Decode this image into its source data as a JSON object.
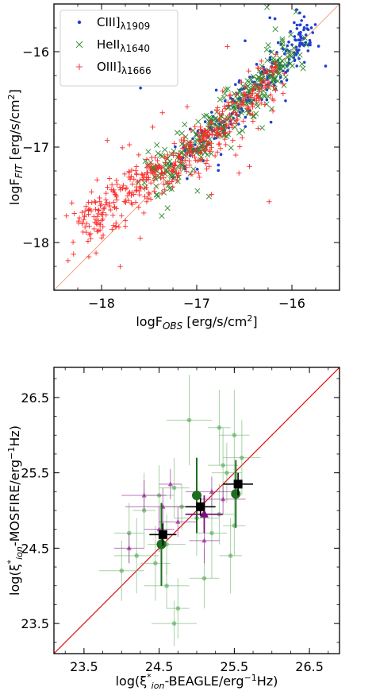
{
  "chart_data": [
    {
      "type": "scatter",
      "title": "",
      "xlabel": {
        "main": "logF",
        "sub": "OBS",
        "units": " [erg/s/cm",
        "sup": "2",
        "close": "]"
      },
      "ylabel": {
        "main": "logF",
        "sub": "FIT",
        "units": " [erg/s/cm",
        "sup": "2",
        "close": "]"
      },
      "xlim": [
        -18.5,
        -15.5
      ],
      "ylim": [
        -18.5,
        -15.5
      ],
      "xticks": [
        -18,
        -17,
        -16
      ],
      "yticks": [
        -18,
        -17,
        -16
      ],
      "xtick_labels": [
        "−18",
        "−17",
        "−16"
      ],
      "ytick_labels": [
        "−18",
        "−17",
        "−16"
      ],
      "grid": false,
      "legend_position": "top-left",
      "reference_line": {
        "from": [
          -18.5,
          -18.5
        ],
        "to": [
          -15.5,
          -15.5
        ],
        "color": "#f4a582"
      },
      "series": [
        {
          "name": "CIII]",
          "sub": "λ1909",
          "marker": "dot",
          "color": "#1f3fd1",
          "center": [
            [
              -17.2,
              -17.2
            ],
            [
              -16.9,
              -16.9
            ],
            [
              -16.6,
              -16.6
            ],
            [
              -16.3,
              -16.3
            ],
            [
              -16.0,
              -16.0
            ],
            [
              -15.8,
              -15.75
            ]
          ],
          "spread": 0.09,
          "count": 260
        },
        {
          "name": "HeII",
          "sub": "λ1640",
          "marker": "x",
          "color": "#2e8b2e",
          "center": [
            [
              -17.5,
              -17.3
            ],
            [
              -17.2,
              -17.15
            ],
            [
              -16.9,
              -16.9
            ],
            [
              -16.6,
              -16.6
            ],
            [
              -16.3,
              -16.3
            ],
            [
              -16.0,
              -16.0
            ]
          ],
          "spread": 0.11,
          "count": 320
        },
        {
          "name": "OIII]",
          "sub": "λ1666",
          "marker": "plus",
          "color": "#ff2a2a",
          "center": [
            [
              -18.2,
              -17.9
            ],
            [
              -17.9,
              -17.6
            ],
            [
              -17.6,
              -17.4
            ],
            [
              -17.3,
              -17.2
            ],
            [
              -17.0,
              -17.0
            ],
            [
              -16.8,
              -16.85
            ],
            [
              -16.5,
              -16.55
            ],
            [
              -16.2,
              -16.25
            ]
          ],
          "spread": 0.12,
          "count": 480
        }
      ]
    },
    {
      "type": "scatter",
      "title": "",
      "xlabel": {
        "pre": "log(ξ",
        "sub": "ion",
        "sup": "*",
        "post": "-BEAGLE/erg",
        "sup2": "−1",
        "close": "Hz)"
      },
      "ylabel": {
        "pre": "log(ξ",
        "sub": "ion",
        "sup": "*",
        "post": "-MOSFIRE/erg",
        "sup2": "−1",
        "close": "Hz)"
      },
      "xlim": [
        23.1,
        26.9
      ],
      "ylim": [
        23.1,
        26.9
      ],
      "xticks": [
        23.5,
        24.5,
        25.5,
        26.5
      ],
      "yticks": [
        23.5,
        24.5,
        25.5,
        26.5
      ],
      "xtick_labels": [
        "23.5",
        "24.5",
        "25.5",
        "26.5"
      ],
      "ytick_labels": [
        "23.5",
        "24.5",
        "25.5",
        "26.5"
      ],
      "grid": false,
      "reference_line": {
        "from": [
          23.1,
          23.1
        ],
        "to": [
          26.9,
          26.9
        ],
        "color": "#e01010"
      },
      "series": [
        {
          "marker": "small-green-circle",
          "color": "#5fae5f",
          "points": [
            {
              "x": 24.9,
              "y": 26.2,
              "xerr": 0.3,
              "yerr": 0.6
            },
            {
              "x": 25.5,
              "y": 26.0,
              "xerr": 0.2,
              "yerr": 0.6
            },
            {
              "x": 25.3,
              "y": 26.1,
              "xerr": 0.15,
              "yerr": 0.5
            },
            {
              "x": 25.6,
              "y": 25.7,
              "xerr": 0.25,
              "yerr": 0.5
            },
            {
              "x": 25.4,
              "y": 25.5,
              "xerr": 0.2,
              "yerr": 0.4
            },
            {
              "x": 24.7,
              "y": 25.3,
              "xerr": 0.2,
              "yerr": 0.4
            },
            {
              "x": 24.3,
              "y": 25.0,
              "xerr": 0.15,
              "yerr": 0.5
            },
            {
              "x": 24.5,
              "y": 25.2,
              "xerr": 0.2,
              "yerr": 0.4
            },
            {
              "x": 24.8,
              "y": 25.05,
              "xerr": 0.25,
              "yerr": 0.3
            },
            {
              "x": 25.0,
              "y": 24.9,
              "xerr": 0.3,
              "yerr": 0.5
            },
            {
              "x": 25.3,
              "y": 24.95,
              "xerr": 0.2,
              "yerr": 0.4
            },
            {
              "x": 25.5,
              "y": 24.8,
              "xerr": 0.15,
              "yerr": 0.4
            },
            {
              "x": 25.2,
              "y": 24.7,
              "xerr": 0.2,
              "yerr": 0.6
            },
            {
              "x": 25.45,
              "y": 24.4,
              "xerr": 0.15,
              "yerr": 0.5
            },
            {
              "x": 24.1,
              "y": 24.7,
              "xerr": 0.2,
              "yerr": 0.4
            },
            {
              "x": 24.2,
              "y": 24.4,
              "xerr": 0.3,
              "yerr": 0.5
            },
            {
              "x": 24.45,
              "y": 24.3,
              "xerr": 0.2,
              "yerr": 0.5
            },
            {
              "x": 24.6,
              "y": 24.55,
              "xerr": 0.25,
              "yerr": 0.4
            },
            {
              "x": 24.0,
              "y": 24.2,
              "xerr": 0.3,
              "yerr": 0.4
            },
            {
              "x": 24.6,
              "y": 24.0,
              "xerr": 0.3,
              "yerr": 0.3
            },
            {
              "x": 24.75,
              "y": 23.7,
              "xerr": 0.15,
              "yerr": 0.4
            },
            {
              "x": 24.7,
              "y": 23.5,
              "xerr": 0.3,
              "yerr": 0.3
            },
            {
              "x": 25.1,
              "y": 24.1,
              "xerr": 0.2,
              "yerr": 0.4
            },
            {
              "x": 25.35,
              "y": 25.6,
              "xerr": 0.2,
              "yerr": 0.5
            }
          ]
        },
        {
          "marker": "purple-triangle",
          "color": "#8b1a8b",
          "points": [
            {
              "x": 24.3,
              "y": 25.2,
              "xerr": 0.3,
              "yerr": 0.2
            },
            {
              "x": 24.55,
              "y": 25.05,
              "xerr": 0.5,
              "yerr": 0.25
            },
            {
              "x": 25.2,
              "y": 25.25,
              "xerr": 0.35,
              "yerr": 0.2
            },
            {
              "x": 25.35,
              "y": 25.15,
              "xerr": 0.3,
              "yerr": 0.2
            },
            {
              "x": 24.5,
              "y": 24.75,
              "xerr": 0.2,
              "yerr": 0.3
            },
            {
              "x": 24.75,
              "y": 24.85,
              "xerr": 0.25,
              "yerr": 0.2
            },
            {
              "x": 25.1,
              "y": 24.6,
              "xerr": 0.2,
              "yerr": 0.3
            },
            {
              "x": 24.65,
              "y": 25.35,
              "xerr": 0.15,
              "yerr": 0.2
            },
            {
              "x": 24.1,
              "y": 24.5,
              "xerr": 0.2,
              "yerr": 0.2
            }
          ]
        },
        {
          "marker": "large-green-circle",
          "color": "#1f6e1f",
          "points": [
            {
              "x": 24.53,
              "y": 24.55,
              "xerr": 0.0,
              "yerr": 0.55
            },
            {
              "x": 25.0,
              "y": 25.2,
              "xerr": 0.0,
              "yerr": 0.5
            },
            {
              "x": 25.52,
              "y": 25.22,
              "xerr": 0.0,
              "yerr": 0.45
            }
          ]
        },
        {
          "marker": "purple-triangle-large",
          "color": "#7a0f7a",
          "points": [
            {
              "x": 25.1,
              "y": 24.95,
              "xerr": 0.25,
              "yerr": 0.25
            }
          ]
        },
        {
          "marker": "black-square",
          "color": "#000000",
          "points": [
            {
              "x": 24.55,
              "y": 24.68,
              "xerr": 0.18,
              "yerr": 0.15
            },
            {
              "x": 25.05,
              "y": 25.05,
              "xerr": 0.2,
              "yerr": 0.12
            },
            {
              "x": 25.55,
              "y": 25.35,
              "xerr": 0.2,
              "yerr": 0.15
            }
          ]
        }
      ]
    }
  ]
}
